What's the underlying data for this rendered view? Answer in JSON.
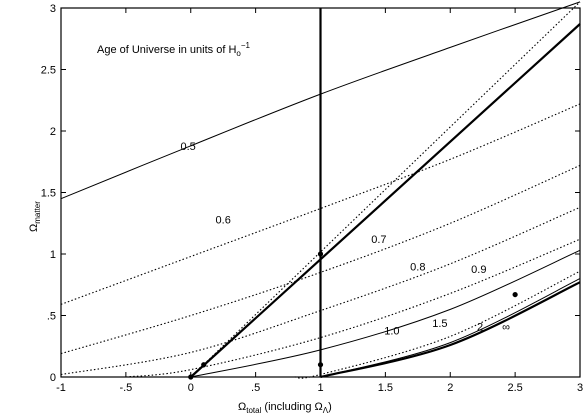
{
  "chart_data": {
    "type": "line",
    "title": "Age of Universe in units of H",
    "title_subscript": "o",
    "title_superscript": "−1",
    "xlabel": "Ω",
    "xlabel_subscript": "total",
    "xlabel_suffix": " (including Ω",
    "xlabel_suffix_subscript": "Λ",
    "xlabel_close": ")",
    "ylabel": "Ω",
    "ylabel_subscript": "matter",
    "xlim": [
      -1,
      3
    ],
    "ylim": [
      0,
      3
    ],
    "grid": false,
    "x_ticks": [
      {
        "value": -1,
        "label": "-1"
      },
      {
        "value": -0.5,
        "label": "-.5"
      },
      {
        "value": 0,
        "label": "0"
      },
      {
        "value": 0.5,
        "label": ".5"
      },
      {
        "value": 1,
        "label": "1"
      },
      {
        "value": 1.5,
        "label": "1.5"
      },
      {
        "value": 2,
        "label": "2"
      },
      {
        "value": 2.5,
        "label": "2.5"
      },
      {
        "value": 3,
        "label": "3"
      }
    ],
    "y_ticks": [
      {
        "value": 0,
        "label": "0"
      },
      {
        "value": 0.5,
        "label": ".5"
      },
      {
        "value": 1,
        "label": "1"
      },
      {
        "value": 1.5,
        "label": "1.5"
      },
      {
        "value": 2,
        "label": "2"
      },
      {
        "value": 2.5,
        "label": "2.5"
      },
      {
        "value": 3,
        "label": "3"
      }
    ],
    "series": [
      {
        "label": "0.5",
        "style": "solid",
        "points": [
          [
            -1,
            1.45
          ],
          [
            0,
            1.88
          ],
          [
            1,
            2.3
          ],
          [
            2,
            2.68
          ],
          [
            3,
            3.05
          ]
        ]
      },
      {
        "label": "0.6",
        "style": "dotted",
        "points": [
          [
            -1,
            0.59
          ],
          [
            0,
            0.98
          ],
          [
            1,
            1.37
          ],
          [
            2,
            1.77
          ],
          [
            3,
            2.22
          ]
        ]
      },
      {
        "label": "0.7",
        "style": "dotted",
        "points": [
          [
            -1,
            0.19
          ],
          [
            0,
            0.5
          ],
          [
            1,
            0.85
          ],
          [
            2,
            1.25
          ],
          [
            3,
            1.72
          ]
        ]
      },
      {
        "label": "0.8",
        "style": "dotted",
        "points": [
          [
            -1,
            0.02
          ],
          [
            0,
            0.2
          ],
          [
            1,
            0.54
          ],
          [
            2,
            0.92
          ],
          [
            3,
            1.38
          ]
        ]
      },
      {
        "label": "0.9",
        "style": "dotted",
        "points": [
          [
            -0.5,
            0
          ],
          [
            0,
            0.06
          ],
          [
            1,
            0.32
          ],
          [
            2,
            0.68
          ],
          [
            3,
            1.12
          ]
        ]
      },
      {
        "label": "1.0",
        "style": "solid",
        "points": [
          [
            0,
            0
          ],
          [
            1,
            0.22
          ],
          [
            2,
            0.55
          ],
          [
            3,
            1.03
          ]
        ]
      },
      {
        "label": "1.5",
        "style": "dotted",
        "points": [
          [
            0.8,
            0
          ],
          [
            1,
            0.02
          ],
          [
            2,
            0.33
          ],
          [
            3,
            0.86
          ]
        ]
      },
      {
        "label": "2",
        "style": "solid",
        "points": [
          [
            1,
            0
          ],
          [
            2,
            0.28
          ],
          [
            3,
            0.8
          ]
        ]
      },
      {
        "label": "∞",
        "style": "bold",
        "points": [
          [
            1,
            0
          ],
          [
            2,
            0.26
          ],
          [
            3,
            0.77
          ]
        ]
      },
      {
        "label": "",
        "style": "bold",
        "points": [
          [
            0,
            0
          ],
          [
            3,
            2.87
          ]
        ]
      },
      {
        "label": "",
        "style": "dotted",
        "points": [
          [
            0,
            0
          ],
          [
            3,
            3.05
          ]
        ]
      },
      {
        "label": "",
        "style": "bold",
        "points": [
          [
            1,
            0
          ],
          [
            1,
            3
          ]
        ]
      }
    ],
    "curve_labels": [
      {
        "text": "0.5",
        "x": -0.02,
        "y": 1.88
      },
      {
        "text": "0.6",
        "x": 0.25,
        "y": 1.28
      },
      {
        "text": "0.7",
        "x": 1.45,
        "y": 1.12
      },
      {
        "text": "0.8",
        "x": 1.75,
        "y": 0.9
      },
      {
        "text": "0.9",
        "x": 2.22,
        "y": 0.88
      },
      {
        "text": "1.0",
        "x": 1.55,
        "y": 0.38
      },
      {
        "text": "1.5",
        "x": 1.92,
        "y": 0.44
      },
      {
        "text": "2",
        "x": 2.23,
        "y": 0.41
      },
      {
        "text": "∞",
        "x": 2.43,
        "y": 0.41
      }
    ],
    "markers": [
      [
        0,
        0
      ],
      [
        0.1,
        0.1
      ],
      [
        1,
        1
      ],
      [
        1,
        0.1
      ],
      [
        2.5,
        0.67
      ]
    ]
  }
}
